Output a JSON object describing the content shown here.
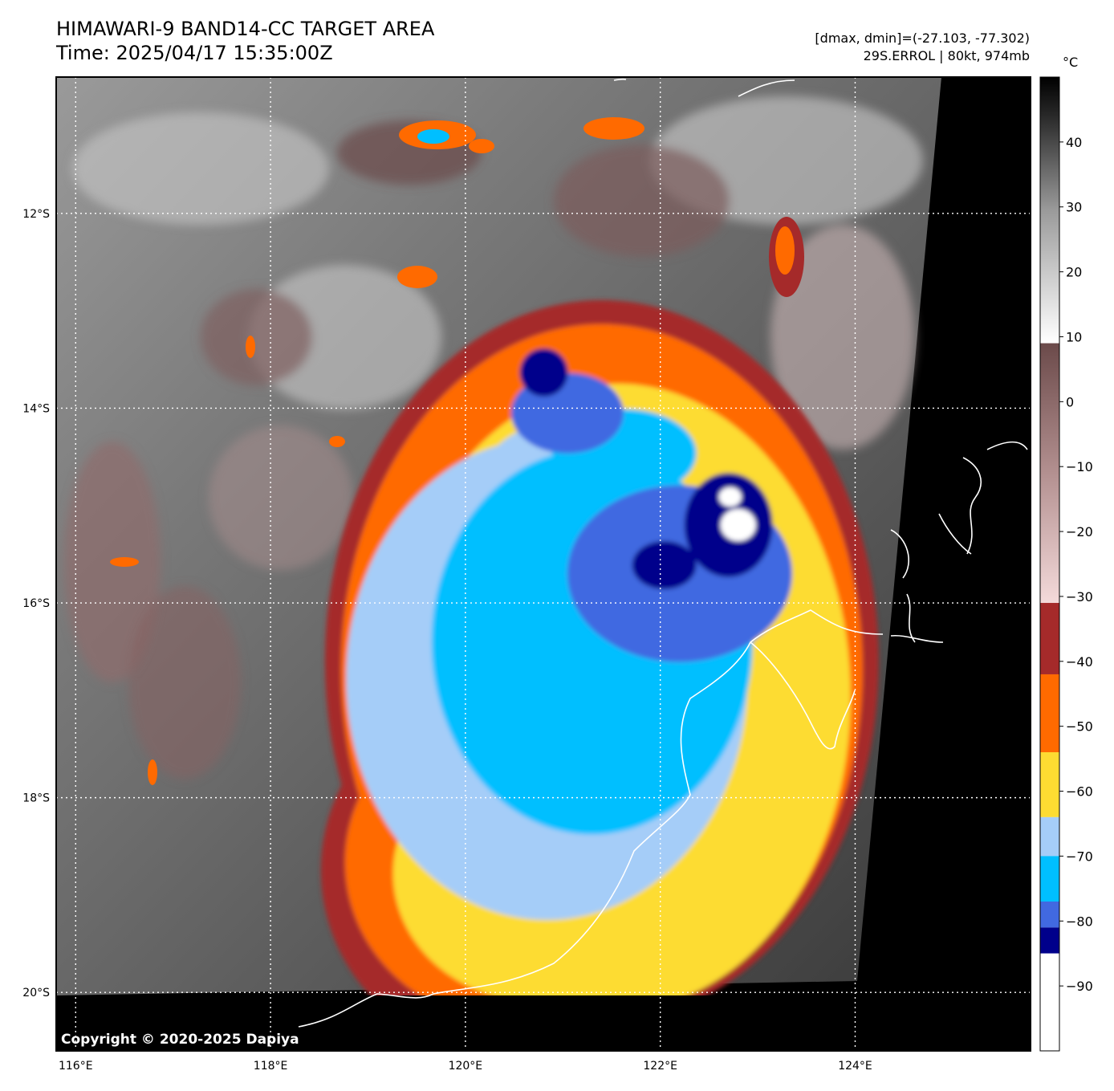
{
  "header": {
    "title": "HIMAWARI-9 BAND14-CC TARGET AREA",
    "time": "Time: 2025/04/17 15:35:00Z",
    "range": "[dmax, dmin]=(-27.103, -77.302)",
    "storm": "29S.ERROL | 80kt, 974mb"
  },
  "copyright": "Copyright © 2020-2025 Dapiya",
  "chart_data": {
    "type": "heatmap",
    "title": "HIMAWARI-9 BAND14-CC TARGET AREA",
    "subtitle": "Time: 2025/04/17 15:35:00Z",
    "lon_range": [
      115.8,
      125.8
    ],
    "lat_range": [
      -20.6,
      -10.6
    ],
    "x_ticks": [
      {
        "value": 116,
        "label": "116°E"
      },
      {
        "value": 118,
        "label": "118°E"
      },
      {
        "value": 120,
        "label": "120°E"
      },
      {
        "value": 122,
        "label": "122°E"
      },
      {
        "value": 124,
        "label": "124°E"
      }
    ],
    "y_ticks": [
      {
        "value": -12,
        "label": "12°S"
      },
      {
        "value": -14,
        "label": "14°S"
      },
      {
        "value": -16,
        "label": "16°S"
      },
      {
        "value": -18,
        "label": "18°S"
      },
      {
        "value": -20,
        "label": "20°S"
      }
    ],
    "grid": true,
    "storm_name": "29S.ERROL",
    "intensity_kt": 80,
    "pressure_mb": 974,
    "dmax": -27.103,
    "dmin": -77.302,
    "colorbar": {
      "unit": "°C",
      "range": [
        -100,
        50
      ],
      "ticks": [
        {
          "value": 40,
          "label": "40"
        },
        {
          "value": 30,
          "label": "30"
        },
        {
          "value": 20,
          "label": "20"
        },
        {
          "value": 10,
          "label": "10"
        },
        {
          "value": 0,
          "label": "0"
        },
        {
          "value": -10,
          "label": "−10"
        },
        {
          "value": -20,
          "label": "−20"
        },
        {
          "value": -30,
          "label": "−30"
        },
        {
          "value": -40,
          "label": "−40"
        },
        {
          "value": -50,
          "label": "−50"
        },
        {
          "value": -60,
          "label": "−60"
        },
        {
          "value": -70,
          "label": "−70"
        },
        {
          "value": -80,
          "label": "−80"
        },
        {
          "value": -90,
          "label": "−90"
        }
      ],
      "segments": [
        {
          "from": 9,
          "to": 50,
          "kind": "gray-gradient"
        },
        {
          "from": -31,
          "to": 9,
          "kind": "brown-pink-gradient"
        },
        {
          "from": -42,
          "to": -31,
          "color": "#a52a2a"
        },
        {
          "from": -54,
          "to": -42,
          "color": "#ff6a00"
        },
        {
          "from": -64,
          "to": -54,
          "color": "#fddc32"
        },
        {
          "from": -70,
          "to": -64,
          "color": "#a5cdf8"
        },
        {
          "from": -77,
          "to": -70,
          "color": "#00bfff"
        },
        {
          "from": -81,
          "to": -77,
          "color": "#4169e1"
        },
        {
          "from": -85,
          "to": -81,
          "color": "#00008b"
        },
        {
          "from": -100,
          "to": -85,
          "color": "#ffffff"
        }
      ]
    },
    "cloud_layers": [
      {
        "name": "cold-shield-dark-red",
        "center": [
          121.4,
          -16.6
        ],
        "color": "#a52a2a"
      },
      {
        "name": "cold-shield-orange",
        "center": [
          121.4,
          -16.6
        ],
        "color": "#ff6a00"
      },
      {
        "name": "cold-shield-yellow",
        "center": [
          121.4,
          -16.8
        ],
        "color": "#fddc32"
      },
      {
        "name": "cold-shield-light-blue",
        "center": [
          121.0,
          -16.7
        ],
        "color": "#a5cdf8"
      },
      {
        "name": "cold-shield-cyan",
        "center": [
          121.3,
          -16.4
        ],
        "color": "#00bfff"
      },
      {
        "name": "cold-top-royal-blue",
        "center": [
          122.2,
          -15.7
        ],
        "color": "#4169e1"
      },
      {
        "name": "cold-top-navy",
        "center": [
          122.7,
          -15.2
        ],
        "color": "#00008b"
      },
      {
        "name": "coldest-tops-white",
        "center": [
          122.8,
          -15.2
        ],
        "color": "#ffffff"
      }
    ]
  }
}
